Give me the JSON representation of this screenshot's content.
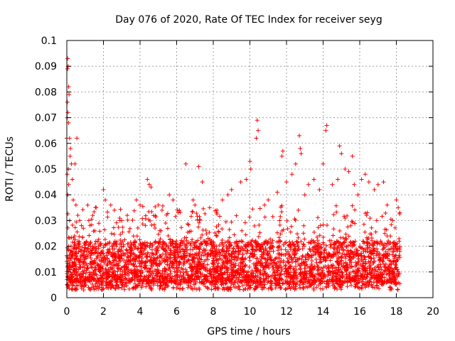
{
  "chart_data": {
    "type": "scatter",
    "title": "Day 076 of 2020, Rate Of TEC Index for receiver seyg",
    "xlabel": "GPS time / hours",
    "ylabel": "ROTI / TECUs",
    "xlim": [
      0,
      20
    ],
    "ylim": [
      0,
      0.1
    ],
    "x_ticks": [
      "0",
      "2",
      "4",
      "6",
      "8",
      "10",
      "12",
      "14",
      "16",
      "18",
      "20"
    ],
    "y_ticks": [
      "0",
      "0.01",
      "0.02",
      "0.03",
      "0.04",
      "0.05",
      "0.06",
      "0.07",
      "0.08",
      "0.09",
      "0.1"
    ],
    "grid": true,
    "marker": "+",
    "color": "#ff0000",
    "series": [
      {
        "name": "ROTI",
        "points": [
          [
            0.05,
            0.093
          ],
          [
            0.07,
            0.09
          ],
          [
            0.04,
            0.089
          ],
          [
            0.1,
            0.082
          ],
          [
            0.12,
            0.079
          ],
          [
            0.03,
            0.076
          ],
          [
            0.06,
            0.072
          ],
          [
            0.02,
            0.07
          ],
          [
            0.09,
            0.068
          ],
          [
            0.15,
            0.062
          ],
          [
            0.0,
            0.062
          ],
          [
            0.55,
            0.062
          ],
          [
            0.2,
            0.058
          ],
          [
            0.18,
            0.055
          ],
          [
            0.25,
            0.052
          ],
          [
            0.08,
            0.05
          ],
          [
            0.02,
            0.048
          ],
          [
            0.45,
            0.052
          ],
          [
            0.3,
            0.046
          ],
          [
            0.1,
            0.044
          ],
          [
            0.05,
            0.04
          ],
          [
            0.35,
            0.038
          ],
          [
            0.5,
            0.036
          ],
          [
            0.15,
            0.03
          ],
          [
            0.6,
            0.032
          ],
          [
            0.7,
            0.03
          ],
          [
            0.8,
            0.028
          ],
          [
            0.9,
            0.027
          ],
          [
            1.2,
            0.03
          ],
          [
            1.6,
            0.035
          ],
          [
            2.0,
            0.042
          ],
          [
            2.1,
            0.038
          ],
          [
            2.4,
            0.036
          ],
          [
            2.6,
            0.034
          ],
          [
            3.0,
            0.03
          ],
          [
            3.3,
            0.032
          ],
          [
            3.8,
            0.038
          ],
          [
            4.0,
            0.036
          ],
          [
            4.4,
            0.046
          ],
          [
            4.5,
            0.044
          ],
          [
            4.6,
            0.043
          ],
          [
            5.0,
            0.036
          ],
          [
            5.2,
            0.034
          ],
          [
            5.6,
            0.04
          ],
          [
            5.8,
            0.038
          ],
          [
            6.5,
            0.052
          ],
          [
            6.9,
            0.038
          ],
          [
            7.0,
            0.036
          ],
          [
            7.2,
            0.051
          ],
          [
            7.4,
            0.045
          ],
          [
            7.8,
            0.035
          ],
          [
            8.2,
            0.034
          ],
          [
            8.5,
            0.038
          ],
          [
            8.8,
            0.04
          ],
          [
            9.0,
            0.042
          ],
          [
            9.5,
            0.045
          ],
          [
            9.8,
            0.046
          ],
          [
            10.0,
            0.053
          ],
          [
            10.05,
            0.05
          ],
          [
            10.4,
            0.069
          ],
          [
            10.45,
            0.065
          ],
          [
            10.35,
            0.062
          ],
          [
            10.8,
            0.036
          ],
          [
            11.0,
            0.038
          ],
          [
            11.5,
            0.041
          ],
          [
            11.8,
            0.057
          ],
          [
            11.75,
            0.055
          ],
          [
            12.0,
            0.045
          ],
          [
            12.3,
            0.048
          ],
          [
            12.5,
            0.052
          ],
          [
            12.7,
            0.063
          ],
          [
            12.75,
            0.058
          ],
          [
            12.8,
            0.056
          ],
          [
            13.0,
            0.04
          ],
          [
            13.2,
            0.044
          ],
          [
            13.5,
            0.046
          ],
          [
            13.8,
            0.042
          ],
          [
            14.0,
            0.052
          ],
          [
            14.2,
            0.067
          ],
          [
            14.15,
            0.065
          ],
          [
            14.5,
            0.044
          ],
          [
            14.8,
            0.046
          ],
          [
            14.9,
            0.059
          ],
          [
            15.0,
            0.056
          ],
          [
            15.2,
            0.05
          ],
          [
            15.4,
            0.049
          ],
          [
            15.6,
            0.055
          ],
          [
            15.7,
            0.044
          ],
          [
            15.9,
            0.04
          ],
          [
            16.1,
            0.046
          ],
          [
            16.3,
            0.048
          ],
          [
            16.5,
            0.045
          ],
          [
            16.8,
            0.042
          ],
          [
            17.0,
            0.044
          ],
          [
            17.3,
            0.045
          ],
          [
            17.5,
            0.036
          ],
          [
            17.8,
            0.03
          ],
          [
            18.0,
            0.038
          ],
          [
            18.1,
            0.035
          ]
        ]
      }
    ],
    "dense_band": {
      "x_range": [
        0,
        18.2
      ],
      "y_floor": 0.003,
      "y_core_low": 0.006,
      "y_core_high": 0.022,
      "y_spike_high": 0.036
    }
  }
}
